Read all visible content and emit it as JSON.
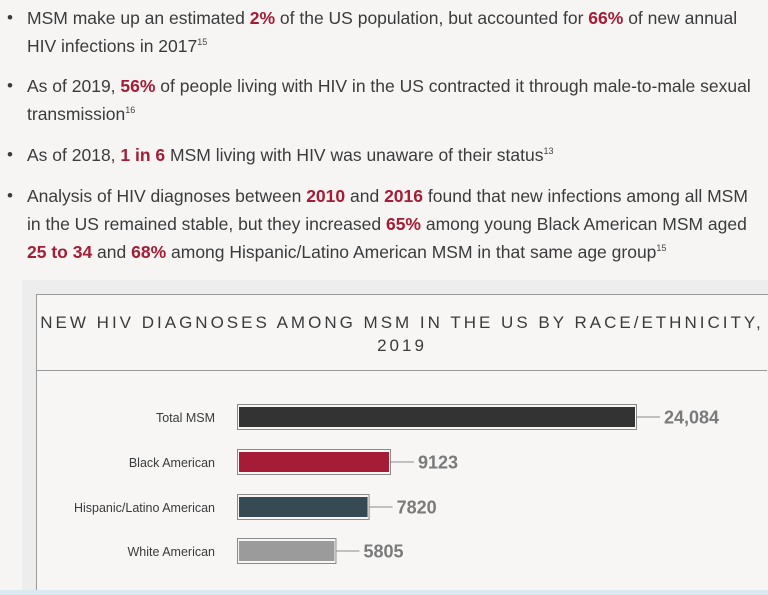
{
  "bullets": [
    {
      "lines": [
        [
          {
            "t": "MSM make up an estimated "
          },
          {
            "t": "2%",
            "hl": true
          },
          {
            "t": " of the US population, but accounted for "
          },
          {
            "t": "66%",
            "hl": true
          },
          {
            "t": " of new annual"
          }
        ],
        [
          {
            "t": "HIV infections in 2017"
          },
          {
            "t": "15",
            "sup": true
          }
        ]
      ]
    },
    {
      "lines": [
        [
          {
            "t": "As of 2019, "
          },
          {
            "t": "56%",
            "hl": true
          },
          {
            "t": " of people living with HIV in the US contracted it through male-to-male sexual"
          }
        ],
        [
          {
            "t": "transmission"
          },
          {
            "t": "16",
            "sup": true
          }
        ]
      ]
    },
    {
      "lines": [
        [
          {
            "t": "As of 2018, "
          },
          {
            "t": "1 in 6",
            "hl": true
          },
          {
            "t": " MSM living with HIV was unaware of their status"
          },
          {
            "t": "13",
            "sup": true
          }
        ]
      ]
    },
    {
      "lines": [
        [
          {
            "t": "Analysis of HIV diagnoses between "
          },
          {
            "t": "2010",
            "hl": true
          },
          {
            "t": " and "
          },
          {
            "t": "2016",
            "hl": true
          },
          {
            "t": " found that new infections among all MSM"
          }
        ],
        [
          {
            "t": "in the US remained stable, but they increased "
          },
          {
            "t": "65%",
            "hl": true
          },
          {
            "t": " among young Black American MSM aged"
          }
        ],
        [
          {
            "t": "25 to 34",
            "hl": true
          },
          {
            "t": " and "
          },
          {
            "t": "68%",
            "hl": true
          },
          {
            "t": " among Hispanic/Latino American MSM in that same age group"
          },
          {
            "t": "15",
            "sup": true
          }
        ]
      ]
    }
  ],
  "chart_data": {
    "type": "bar",
    "orientation": "horizontal",
    "title_line1": "NEW HIV DIAGNOSES AMONG MSM IN THE US BY RACE/ETHNICITY,",
    "title_line2": "2019",
    "categories": [
      "Total MSM",
      "Black American",
      "Hispanic/Latino American",
      "White American"
    ],
    "values": [
      24084,
      9123,
      7820,
      5805
    ],
    "value_labels": [
      "24,084",
      "9123",
      "7820",
      "5805"
    ],
    "colors": [
      "#333333",
      "#a51c36",
      "#354a52",
      "#9b9b9b"
    ],
    "xlabel": "",
    "ylabel": "",
    "grid": false,
    "legend": "none"
  },
  "colors": {
    "highlight": "#a51c36",
    "text": "#3b3b3b",
    "label_gray": "#7a7a7a"
  }
}
